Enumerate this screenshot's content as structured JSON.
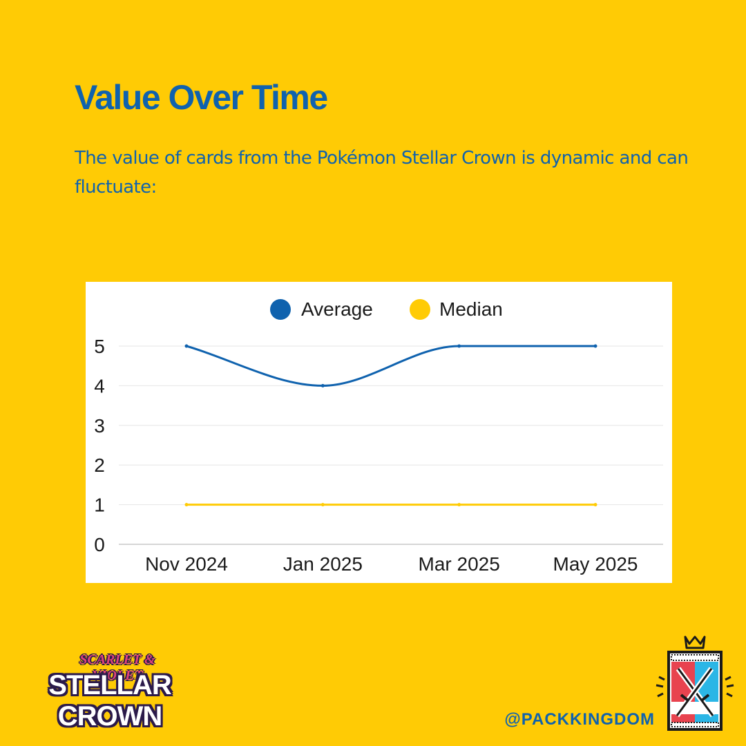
{
  "header": {
    "title": "Value Over Time",
    "subtitle": "The value of cards from the Pokémon Stellar Crown is dynamic and can fluctuate:"
  },
  "colors": {
    "background": "#ffcb05",
    "text": "#0f62ae",
    "average": "#0f62ae",
    "median": "#ffcb05"
  },
  "chart_data": {
    "type": "line",
    "categories": [
      "Nov 2024",
      "Jan 2025",
      "Mar 2025",
      "May 2025"
    ],
    "series": [
      {
        "name": "Average",
        "values": [
          5,
          4,
          5,
          5
        ],
        "color": "#0f62ae"
      },
      {
        "name": "Median",
        "values": [
          1,
          1,
          1,
          1
        ],
        "color": "#ffcb05"
      }
    ],
    "y_ticks": [
      "0",
      "1",
      "2",
      "3",
      "4",
      "5"
    ],
    "ylim": [
      0,
      5
    ],
    "grid": true,
    "legend": "top-center",
    "smooth": true
  },
  "footer": {
    "logo_top": "SCARLET & VIOLET",
    "logo_main": "STELLAR CROWN",
    "handle": "@PACKKINGDOM",
    "brand_icon": "pack-kingdom-crossed-swords-icon"
  }
}
